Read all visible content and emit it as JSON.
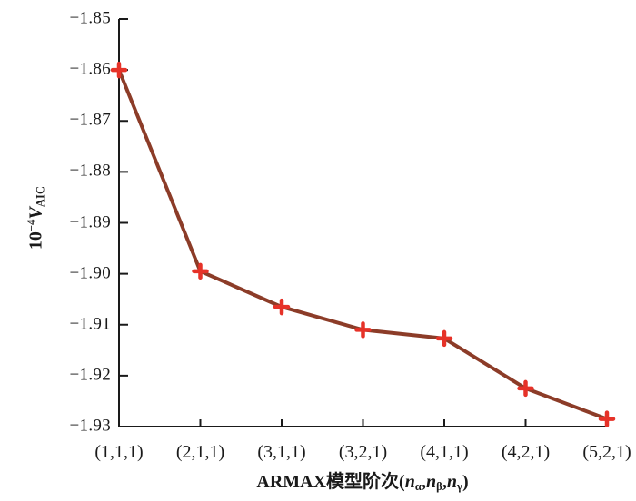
{
  "figure": {
    "background": "#ffffff",
    "text_color": "#1a1a1a"
  },
  "chart_data": {
    "type": "line",
    "title": "",
    "xlabel_text": "ARMAX模型阶次(nα,nβ,nγ)",
    "ylabel_text": "10−4VAIC",
    "xlabel_tokens": [
      {
        "text": "ARMAX模型阶次(",
        "style": "plain"
      },
      {
        "text": "n",
        "style": "italic"
      },
      {
        "text": "α",
        "style": "sub"
      },
      {
        "text": ",",
        "style": "plain"
      },
      {
        "text": "n",
        "style": "italic"
      },
      {
        "text": "β",
        "style": "sub"
      },
      {
        "text": ",",
        "style": "plain"
      },
      {
        "text": "n",
        "style": "italic"
      },
      {
        "text": "γ",
        "style": "sub"
      },
      {
        "text": ")",
        "style": "plain"
      }
    ],
    "ylabel_tokens": [
      {
        "text": "10",
        "style": "plain"
      },
      {
        "text": "−4",
        "style": "sup"
      },
      {
        "text": "V",
        "style": "italic"
      },
      {
        "text": "AIC",
        "style": "sub"
      }
    ],
    "categories": [
      "(1,1,1)",
      "(2,1,1)",
      "(3,1,1)",
      "(3,2,1)",
      "(4,1,1)",
      "(4,2,1)",
      "(5,2,1)"
    ],
    "series": [
      {
        "name": "VAIC",
        "values": [
          -1.86,
          -1.8995,
          -1.9065,
          -1.911,
          -1.9127,
          -1.9225,
          -1.9285
        ],
        "line_color": "#8c3c28",
        "line_width": 4,
        "marker": "plus",
        "marker_color": "#e63228",
        "marker_size": 14
      }
    ],
    "ylim": [
      -1.93,
      -1.85
    ],
    "yticks": [
      -1.85,
      -1.86,
      -1.87,
      -1.88,
      -1.89,
      -1.9,
      -1.91,
      -1.92,
      -1.93
    ],
    "ytick_labels": [
      "−1.85",
      "−1.86",
      "−1.87",
      "−1.88",
      "−1.89",
      "−1.90",
      "−1.91",
      "−1.92",
      "−1.93"
    ],
    "grid": false,
    "legend": "none",
    "axis_color": "#1a1a1a"
  }
}
